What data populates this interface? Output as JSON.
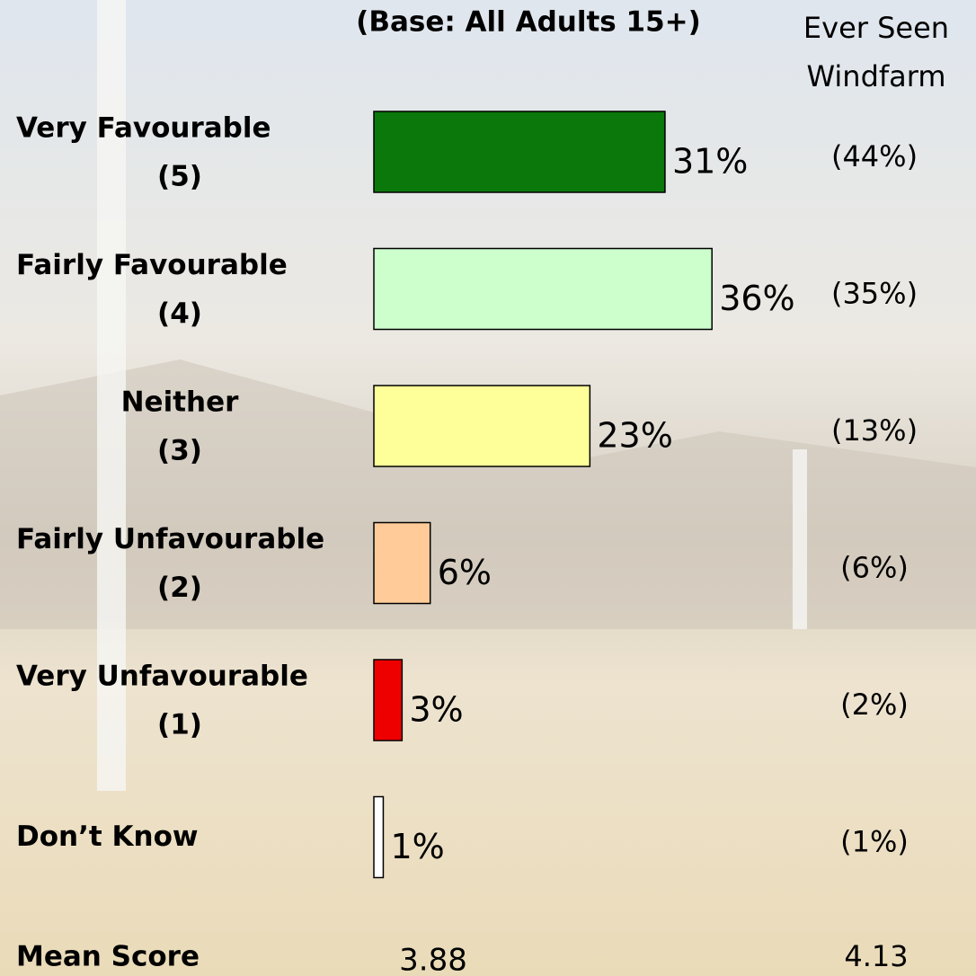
{
  "chart_data": {
    "type": "bar",
    "subtitle": "(Base: All Adults 15+)",
    "categories": [
      "Very Favourable",
      "Fairly Favourable",
      "Neither",
      "Fairly Unfavourable",
      "Very Unfavourable",
      "Don’t Know"
    ],
    "category_codes": [
      "(5)",
      "(4)",
      "(3)",
      "(2)",
      "(1)",
      null
    ],
    "values": [
      31,
      36,
      23,
      6,
      3,
      1
    ],
    "value_labels": [
      "31%",
      "36%",
      "23%",
      "6%",
      "3%",
      "1%"
    ],
    "colors": [
      "#0a780a",
      "#ccffcc",
      "#ffff99",
      "#ffcc99",
      "#ee0000",
      "#ffffff"
    ],
    "comparison": {
      "title": [
        "Ever Seen",
        "Windfarm"
      ],
      "values": [
        44,
        35,
        13,
        6,
        2,
        1
      ],
      "value_labels": [
        "(44%)",
        "(35%)",
        "(13%)",
        "(6%)",
        "(2%)",
        "(1%)"
      ]
    },
    "mean_score": {
      "label": "Mean Score",
      "values": [
        3.88,
        4.13
      ]
    }
  }
}
